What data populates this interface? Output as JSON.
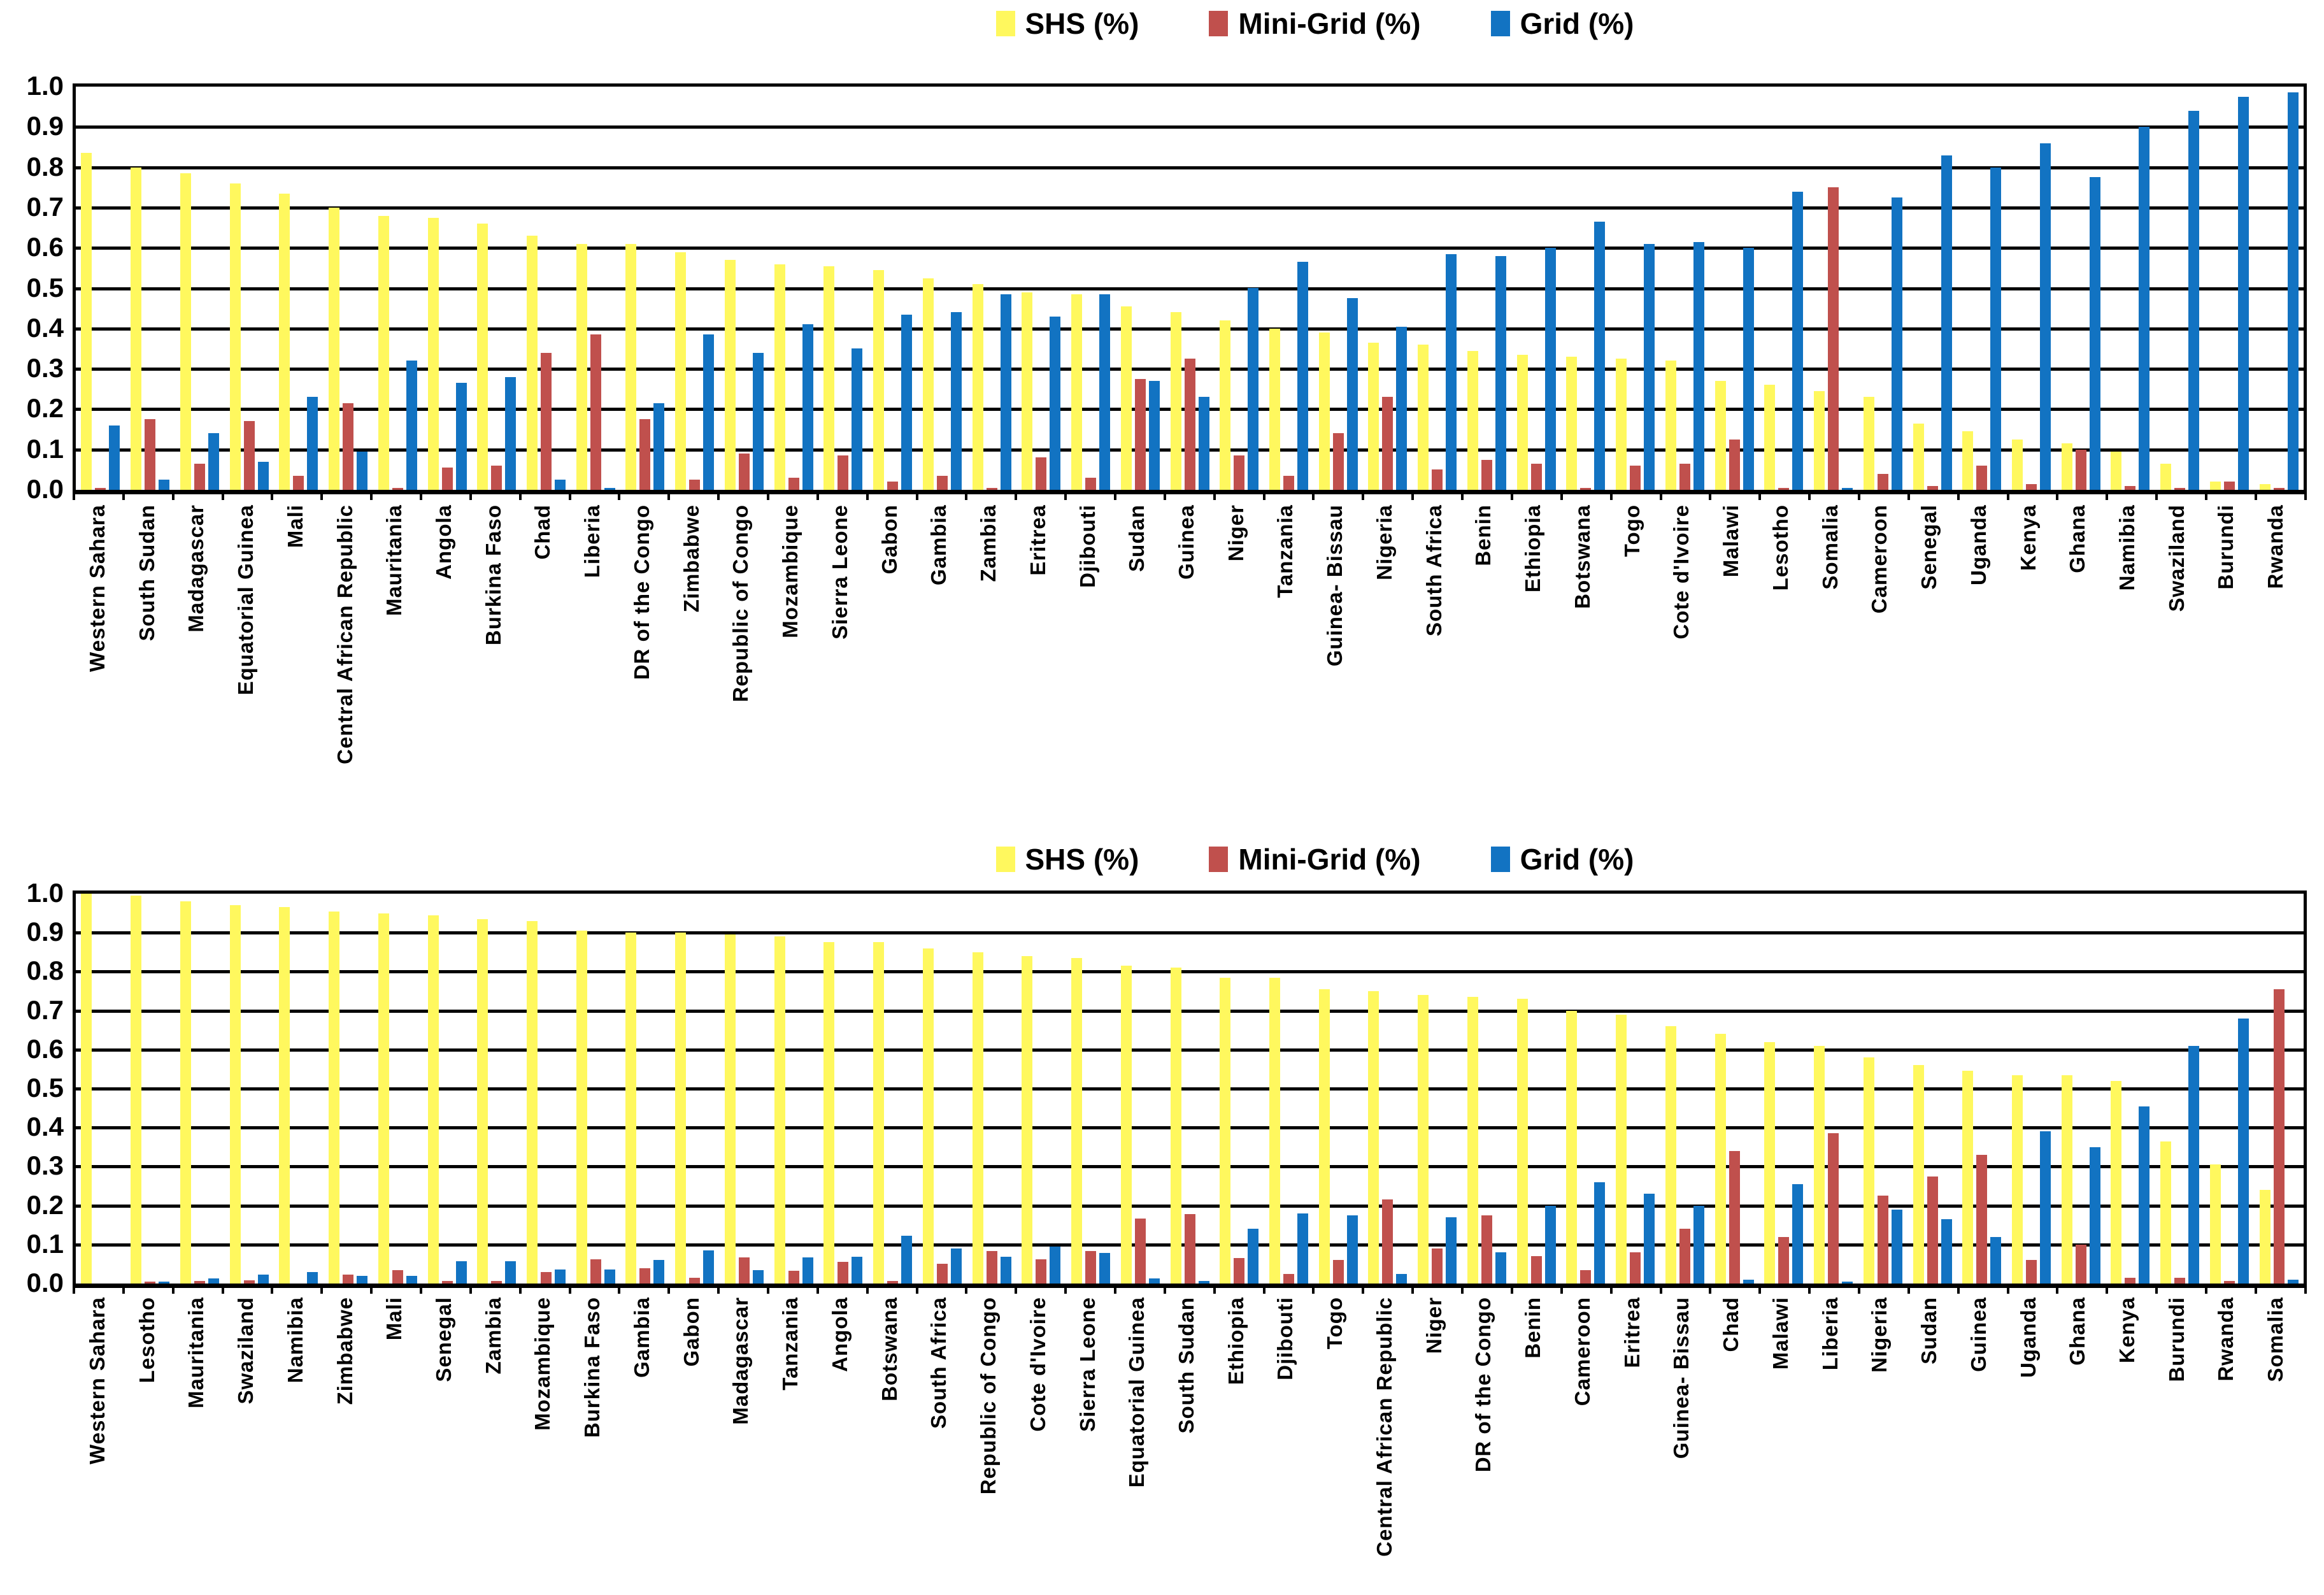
{
  "figure": {
    "background": "#FFFFFF"
  },
  "colors": {
    "shs": "#FFF85E",
    "mini_grid": "#C0504D",
    "grid": "#1273C2",
    "axis": "#000000"
  },
  "legend": {
    "items": [
      "SHS (%)",
      "Mini-Grid (%)",
      "Grid (%)"
    ]
  },
  "y_axis": {
    "ticks": [
      "1.0",
      "0.9",
      "0.8",
      "0.7",
      "0.6",
      "0.5",
      "0.4",
      "0.3",
      "0.2",
      "0.1",
      "0.0"
    ]
  },
  "chart_data": [
    {
      "type": "bar",
      "title": "",
      "grid": true,
      "ylim": [
        0,
        1
      ],
      "legend_position": "top",
      "categories": [
        "Western Sahara",
        "South Sudan",
        "Madagascar",
        "Equatorial Guinea",
        "Mali",
        "Central African Republic",
        "Mauritania",
        "Angola",
        "Burkina Faso",
        "Chad",
        "Liberia",
        "DR of the Congo",
        "Zimbabwe",
        "Republic of Congo",
        "Mozambique",
        "Sierra Leone",
        "Gabon",
        "Gambia",
        "Zambia",
        "Eritrea",
        "Djibouti",
        "Sudan",
        "Guinea",
        "Niger",
        "Tanzania",
        "Guinea- Bissau",
        "Nigeria",
        "South Africa",
        "Benin",
        "Ethiopia",
        "Botswana",
        "Togo",
        "Cote d'Ivoire",
        "Malawi",
        "Lesotho",
        "Somalia",
        "Cameroon",
        "Senegal",
        "Uganda",
        "Kenya",
        "Ghana",
        "Namibia",
        "Swaziland",
        "Burundi",
        "Rwanda"
      ],
      "series": [
        {
          "name": "SHS (%)",
          "color": "#FFF85E",
          "values": [
            0.835,
            0.8,
            0.785,
            0.76,
            0.735,
            0.7,
            0.68,
            0.675,
            0.66,
            0.63,
            0.61,
            0.61,
            0.59,
            0.57,
            0.56,
            0.555,
            0.545,
            0.525,
            0.51,
            0.49,
            0.485,
            0.455,
            0.44,
            0.42,
            0.4,
            0.39,
            0.365,
            0.36,
            0.345,
            0.335,
            0.33,
            0.325,
            0.32,
            0.27,
            0.26,
            0.245,
            0.23,
            0.165,
            0.145,
            0.125,
            0.115,
            0.095,
            0.065,
            0.02,
            0.015
          ]
        },
        {
          "name": "Mini-Grid (%)",
          "color": "#C0504D",
          "values": [
            0.005,
            0.175,
            0.065,
            0.17,
            0.035,
            0.215,
            0.005,
            0.055,
            0.06,
            0.34,
            0.385,
            0.175,
            0.025,
            0.09,
            0.03,
            0.085,
            0.02,
            0.035,
            0.005,
            0.08,
            0.03,
            0.275,
            0.325,
            0.085,
            0.035,
            0.14,
            0.23,
            0.05,
            0.075,
            0.065,
            0.005,
            0.06,
            0.065,
            0.125,
            0.005,
            0.75,
            0.04,
            0.01,
            0.06,
            0.015,
            0.1,
            0.01,
            0.005,
            0.02,
            0.005
          ]
        },
        {
          "name": "Grid (%)",
          "color": "#1273C2",
          "values": [
            0.16,
            0.025,
            0.14,
            0.07,
            0.23,
            0.095,
            0.32,
            0.265,
            0.28,
            0.025,
            0.005,
            0.215,
            0.385,
            0.34,
            0.41,
            0.35,
            0.435,
            0.44,
            0.485,
            0.43,
            0.485,
            0.27,
            0.23,
            0.5,
            0.565,
            0.475,
            0.405,
            0.585,
            0.58,
            0.6,
            0.665,
            0.61,
            0.615,
            0.6,
            0.74,
            0.005,
            0.725,
            0.83,
            0.8,
            0.86,
            0.775,
            0.9,
            0.94,
            0.975,
            0.985
          ]
        }
      ]
    },
    {
      "type": "bar",
      "title": "",
      "grid": true,
      "ylim": [
        0,
        1
      ],
      "legend_position": "top",
      "categories": [
        "Western Sahara",
        "Lesotho",
        "Mauritania",
        "Swaziland",
        "Namibia",
        "Zimbabwe",
        "Mali",
        "Senegal",
        "Zambia",
        "Mozambique",
        "Burkina Faso",
        "Gambia",
        "Gabon",
        "Madagascar",
        "Tanzania",
        "Angola",
        "Botswana",
        "South Africa",
        "Republic of Congo",
        "Cote d'Ivoire",
        "Sierra Leone",
        "Equatorial Guinea",
        "South Sudan",
        "Ethiopia",
        "Djibouti",
        "Togo",
        "Central African Republic",
        "Niger",
        "DR of the Congo",
        "Benin",
        "Cameroon",
        "Eritrea",
        "Guinea- Bissau",
        "Chad",
        "Malawi",
        "Liberia",
        "Nigeria",
        "Sudan",
        "Guinea",
        "Uganda",
        "Ghana",
        "Kenya",
        "Burundi",
        "Rwanda",
        "Somalia"
      ],
      "series": [
        {
          "name": "SHS (%)",
          "color": "#FFF85E",
          "values": [
            1.0,
            0.995,
            0.98,
            0.97,
            0.965,
            0.955,
            0.95,
            0.945,
            0.935,
            0.93,
            0.905,
            0.9,
            0.9,
            0.895,
            0.89,
            0.875,
            0.875,
            0.86,
            0.85,
            0.84,
            0.835,
            0.815,
            0.81,
            0.785,
            0.785,
            0.755,
            0.75,
            0.74,
            0.735,
            0.73,
            0.7,
            0.69,
            0.66,
            0.64,
            0.62,
            0.61,
            0.58,
            0.56,
            0.545,
            0.535,
            0.535,
            0.52,
            0.365,
            0.305,
            0.24
          ]
        },
        {
          "name": "Mini-Grid (%)",
          "color": "#C0504D",
          "values": [
            0.0,
            0.005,
            0.007,
            0.008,
            0.0,
            0.023,
            0.035,
            0.007,
            0.007,
            0.03,
            0.062,
            0.04,
            0.015,
            0.067,
            0.033,
            0.056,
            0.006,
            0.051,
            0.084,
            0.062,
            0.084,
            0.167,
            0.178,
            0.065,
            0.025,
            0.06,
            0.215,
            0.09,
            0.175,
            0.07,
            0.035,
            0.08,
            0.14,
            0.34,
            0.12,
            0.385,
            0.225,
            0.275,
            0.33,
            0.06,
            0.1,
            0.015,
            0.015,
            0.006,
            0.755
          ]
        },
        {
          "name": "Grid (%)",
          "color": "#1273C2",
          "values": [
            0.0,
            0.005,
            0.013,
            0.023,
            0.03,
            0.02,
            0.02,
            0.058,
            0.058,
            0.036,
            0.036,
            0.06,
            0.085,
            0.035,
            0.067,
            0.068,
            0.123,
            0.09,
            0.068,
            0.095,
            0.078,
            0.013,
            0.006,
            0.14,
            0.18,
            0.175,
            0.025,
            0.17,
            0.08,
            0.2,
            0.26,
            0.23,
            0.2,
            0.01,
            0.255,
            0.005,
            0.19,
            0.165,
            0.12,
            0.39,
            0.35,
            0.455,
            0.61,
            0.68,
            0.01
          ]
        }
      ]
    }
  ]
}
